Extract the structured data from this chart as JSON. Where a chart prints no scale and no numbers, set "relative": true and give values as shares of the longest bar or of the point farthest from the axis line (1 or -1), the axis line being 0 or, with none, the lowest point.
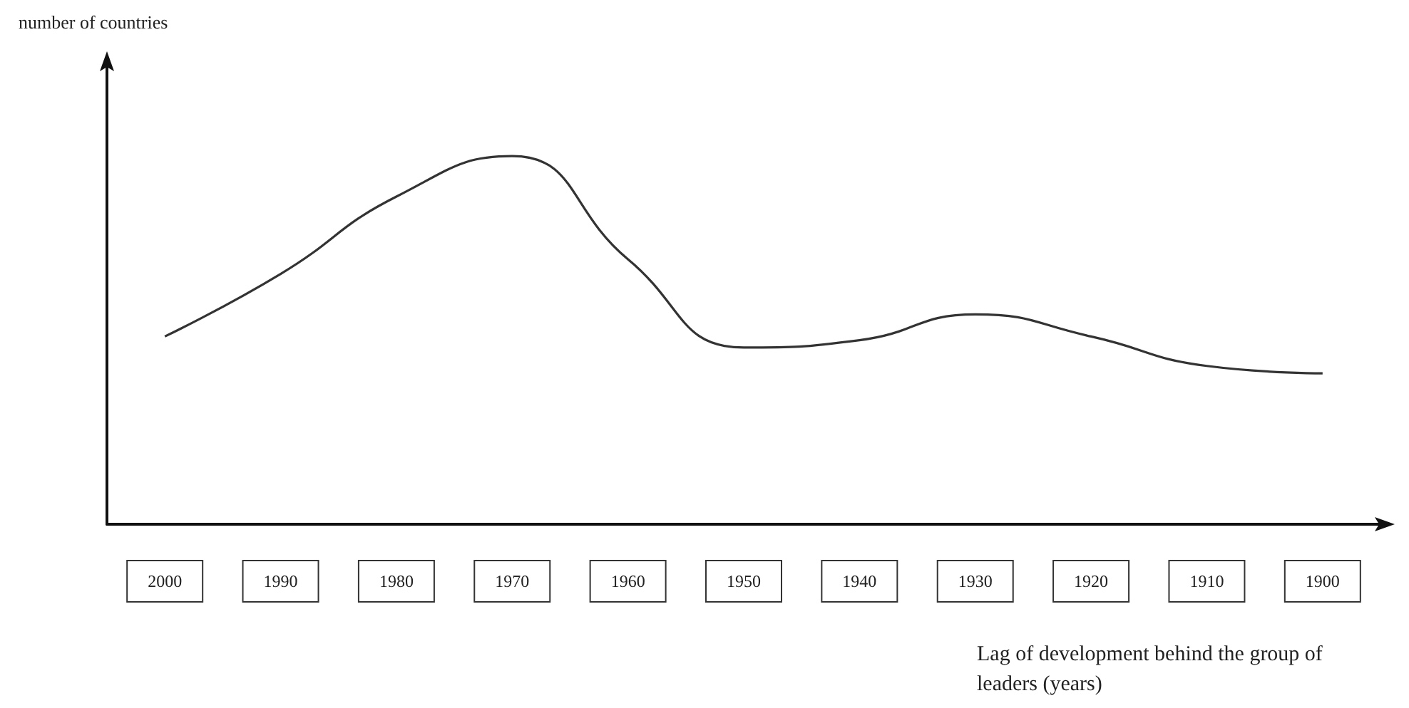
{
  "chart_data": {
    "type": "line",
    "relative": true,
    "annotations": [
      "number of countries"
    ],
    "xlabel": "Lag of development behind the group of leaders (years)",
    "categories": [
      "2000",
      "1990",
      "1980",
      "1970",
      "1960",
      "1950",
      "1940",
      "1930",
      "1920",
      "1910",
      "1900"
    ],
    "series": [
      {
        "color": "#333333",
        "values": [
          0.51,
          0.68,
          0.89,
          1,
          0.72,
          0.48,
          0.5,
          0.57,
          0.51,
          0.43,
          0.41
        ]
      }
    ],
    "marker": "none",
    "line_style": "solid"
  }
}
